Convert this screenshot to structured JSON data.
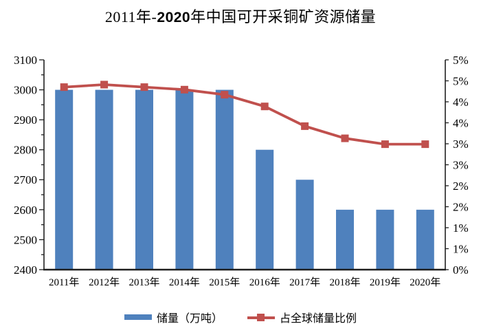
{
  "title": {
    "prefix": "2011年-",
    "bold_year": "2020",
    "suffix": "年中国可开采铜矿资源储量"
  },
  "chart_data": {
    "type": "combo-bar-line",
    "title": "2011年-2020年中国可开采铜矿资源储量",
    "categories": [
      "2011年",
      "2012年",
      "2013年",
      "2014年",
      "2015年",
      "2016年",
      "2017年",
      "2018年",
      "2019年",
      "2020年"
    ],
    "series": [
      {
        "name": "储量（万吨）",
        "type": "bar",
        "axis": "left",
        "values": [
          3000,
          3000,
          3000,
          3000,
          3000,
          2800,
          2700,
          2600,
          2600,
          2600
        ],
        "color": "#4F81BD"
      },
      {
        "name": "占全球储量比例",
        "type": "line",
        "axis": "right",
        "values": [
          4.35,
          4.41,
          4.35,
          4.29,
          4.17,
          3.89,
          3.42,
          3.13,
          2.99,
          2.99
        ],
        "color": "#C0504D",
        "marker": "square"
      }
    ],
    "left_axis": {
      "min": 2400,
      "max": 3100,
      "major_step": 100,
      "minor_step": 50,
      "tick_labels_top_to_bottom": [
        "3100",
        "3000",
        "2900",
        "2800",
        "2700",
        "2600",
        "2500",
        "2400"
      ]
    },
    "right_axis": {
      "min": 0,
      "max": 5,
      "tick_step": 0.5,
      "tick_labels_top_to_bottom": [
        "5%",
        "5%",
        "4%",
        "4%",
        "3%",
        "3%",
        "2%",
        "2%",
        "1%",
        "1%",
        "0%"
      ]
    },
    "grid": false,
    "legend_position": "bottom"
  },
  "colors": {
    "bar": "#4F81BD",
    "line": "#C0504D",
    "axis": "#1f1f1f",
    "text": "#000000",
    "background": "#FFFFFF"
  }
}
